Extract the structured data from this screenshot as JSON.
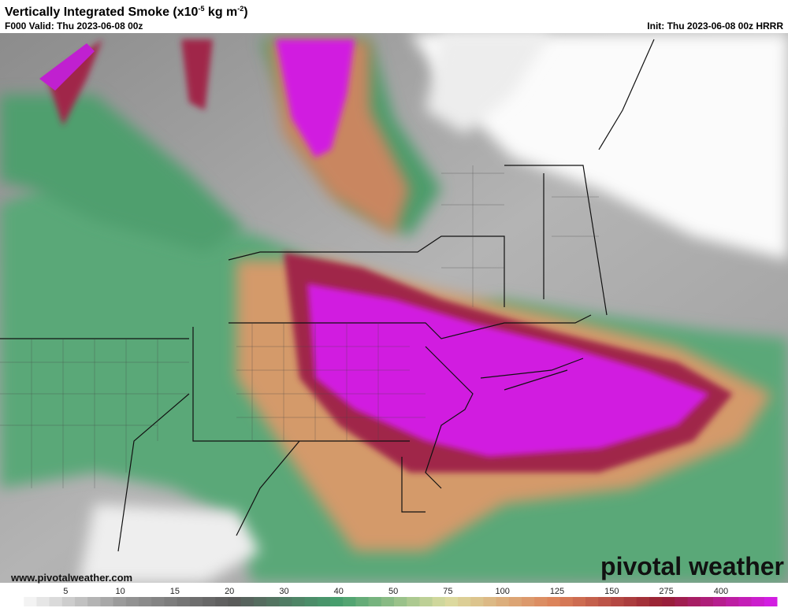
{
  "header": {
    "title": {
      "main": "Vertically Integrated Smoke (x10",
      "exponent1": "-5",
      "unit": " kg m",
      "exponent2": "-2",
      "close": ")"
    },
    "valid": "F000 Valid: Thu 2023-06-08 00z",
    "init": "Init: Thu 2023-06-08 00z HRRR"
  },
  "footer": {
    "website": "www.pivotalweather.com",
    "logo": "pivotal weather"
  },
  "colorbar": {
    "labels": [
      5,
      10,
      15,
      20,
      30,
      40,
      50,
      75,
      100,
      125,
      150,
      275,
      400
    ]
  }
}
